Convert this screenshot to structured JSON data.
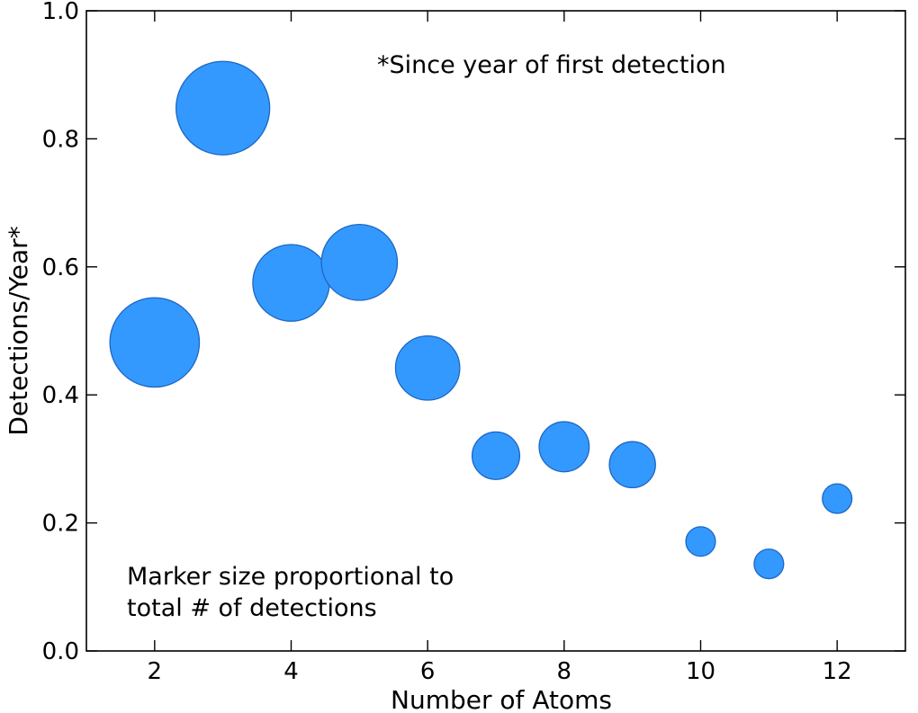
{
  "chart_data": {
    "type": "scatter",
    "title": "",
    "xlabel": "Number of Atoms",
    "ylabel": "Detections/Year*",
    "xlim": [
      1,
      13
    ],
    "ylim": [
      0.0,
      1.0
    ],
    "xticks": [
      2,
      4,
      6,
      8,
      10,
      12
    ],
    "yticks": [
      0.0,
      0.2,
      0.4,
      0.6,
      0.8,
      1.0
    ],
    "ytick_labels": [
      "0.0",
      "0.2",
      "0.4",
      "0.6",
      "0.8",
      "1.0"
    ],
    "grid": false,
    "marker_color": "#3399ff",
    "marker_edge_color": "#1f66c2",
    "size_encoding": "total number of detections (relative)",
    "points": [
      {
        "x": 2,
        "y": 0.482,
        "size": 64
      },
      {
        "x": 3,
        "y": 0.848,
        "size": 70
      },
      {
        "x": 4,
        "y": 0.575,
        "size": 47
      },
      {
        "x": 5,
        "y": 0.607,
        "size": 46
      },
      {
        "x": 6,
        "y": 0.442,
        "size": 33
      },
      {
        "x": 7,
        "y": 0.305,
        "size": 18
      },
      {
        "x": 8,
        "y": 0.319,
        "size": 20
      },
      {
        "x": 9,
        "y": 0.291,
        "size": 17
      },
      {
        "x": 10,
        "y": 0.171,
        "size": 7
      },
      {
        "x": 11,
        "y": 0.136,
        "size": 7
      },
      {
        "x": 12,
        "y": 0.238,
        "size": 7
      }
    ],
    "annotations": [
      {
        "id": "since",
        "text": "*Since year of first detection"
      },
      {
        "id": "marker-note-1",
        "text": "Marker size proportional to"
      },
      {
        "id": "marker-note-2",
        "text": "total # of detections"
      }
    ]
  }
}
